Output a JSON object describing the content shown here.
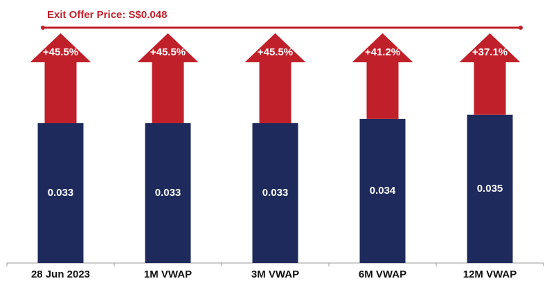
{
  "chart_data": {
    "type": "bar",
    "title": "Exit Offer Price: S$0.048",
    "categories": [
      "28 Jun 2023",
      "1M VWAP",
      "3M VWAP",
      "6M VWAP",
      "12M VWAP"
    ],
    "values": [
      0.033,
      0.033,
      0.033,
      0.034,
      0.035
    ],
    "color": "#1f2a5c",
    "premiums": [
      45.5,
      45.5,
      45.5,
      41.2,
      37.1
    ],
    "premium_labels": [
      "+45.5%",
      "+45.5%",
      "+45.5%",
      "+41.2%",
      "+37.1%"
    ],
    "premium_color": "#c0202a"
  }
}
